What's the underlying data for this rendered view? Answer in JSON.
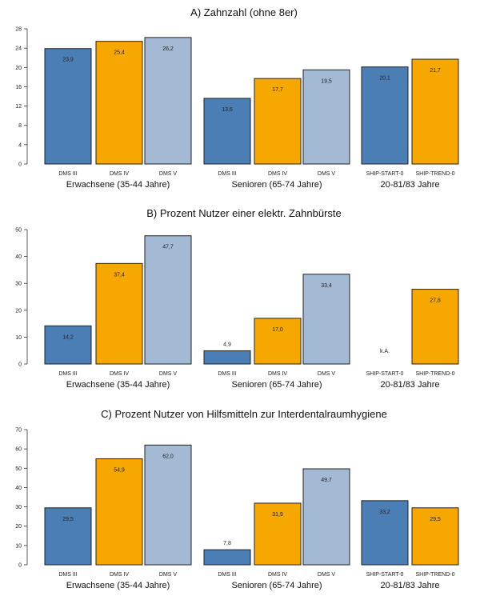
{
  "chart_data": [
    {
      "type": "bar",
      "title": "A) Zahnzahl (ohne 8er)",
      "ylim": [
        0,
        28
      ],
      "yticks": [
        0,
        4,
        8,
        12,
        16,
        20,
        24,
        28
      ],
      "groups": [
        {
          "label": "Erwachsene (35-44 Jahre)",
          "bars": [
            {
              "category": "DMS III",
              "value": 23.9,
              "label": "23,9",
              "series": "DMS III"
            },
            {
              "category": "DMS IV",
              "value": 25.4,
              "label": "25,4",
              "series": "DMS IV"
            },
            {
              "category": "DMS V",
              "value": 26.2,
              "label": "26,2",
              "series": "DMS V"
            }
          ]
        },
        {
          "label": "Senioren (65-74 Jahre)",
          "bars": [
            {
              "category": "DMS III",
              "value": 13.6,
              "label": "13,6",
              "series": "DMS III"
            },
            {
              "category": "DMS IV",
              "value": 17.7,
              "label": "17,7",
              "series": "DMS IV"
            },
            {
              "category": "DMS V",
              "value": 19.5,
              "label": "19,5",
              "series": "DMS V"
            }
          ]
        },
        {
          "label": "20-81/83 Jahre",
          "bars": [
            {
              "category": "SHIP-START-0",
              "value": 20.1,
              "label": "20,1",
              "series": "SHIP-START-0"
            },
            {
              "category": "SHIP-TREND-0",
              "value": 21.7,
              "label": "21,7",
              "series": "SHIP-TREND-0"
            }
          ]
        }
      ]
    },
    {
      "type": "bar",
      "title": "B) Prozent Nutzer einer elektr. Zahnbürste",
      "ylim": [
        0,
        50
      ],
      "yticks": [
        0,
        10,
        20,
        30,
        40,
        50
      ],
      "groups": [
        {
          "label": "Erwachsene (35-44 Jahre)",
          "bars": [
            {
              "category": "DMS III",
              "value": 14.2,
              "label": "14,2",
              "series": "DMS III"
            },
            {
              "category": "DMS IV",
              "value": 37.4,
              "label": "37,4",
              "series": "DMS IV"
            },
            {
              "category": "DMS V",
              "value": 47.7,
              "label": "47,7",
              "series": "DMS V"
            }
          ]
        },
        {
          "label": "Senioren (65-74 Jahre)",
          "bars": [
            {
              "category": "DMS III",
              "value": 4.9,
              "label": "4,9",
              "series": "DMS III"
            },
            {
              "category": "DMS IV",
              "value": 17.0,
              "label": "17,0",
              "series": "DMS IV"
            },
            {
              "category": "DMS V",
              "value": 33.4,
              "label": "33,4",
              "series": "DMS V"
            }
          ]
        },
        {
          "label": "20-81/83 Jahre",
          "bars": [
            {
              "category": "SHIP-START-0",
              "value": null,
              "label": "k.A.",
              "series": "SHIP-START-0"
            },
            {
              "category": "SHIP-TREND-0",
              "value": 27.8,
              "label": "27,8",
              "series": "SHIP-TREND-0"
            }
          ]
        }
      ]
    },
    {
      "type": "bar",
      "title": "C) Prozent Nutzer von Hilfsmitteln zur Interdentalraumhygiene",
      "ylim": [
        0,
        70
      ],
      "yticks": [
        0,
        10,
        20,
        30,
        40,
        50,
        60,
        70
      ],
      "groups": [
        {
          "label": "Erwachsene (35-44 Jahre)",
          "bars": [
            {
              "category": "DMS III",
              "value": 29.5,
              "label": "29,5",
              "series": "DMS III"
            },
            {
              "category": "DMS IV",
              "value": 54.9,
              "label": "54,9",
              "series": "DMS IV"
            },
            {
              "category": "DMS V",
              "value": 62.0,
              "label": "62,0",
              "series": "DMS V"
            }
          ]
        },
        {
          "label": "Senioren (65-74 Jahre)",
          "bars": [
            {
              "category": "DMS III",
              "value": 7.8,
              "label": "7,8",
              "series": "DMS III"
            },
            {
              "category": "DMS IV",
              "value": 31.9,
              "label": "31,9",
              "series": "DMS IV"
            },
            {
              "category": "DMS V",
              "value": 49.7,
              "label": "49,7",
              "series": "DMS V"
            }
          ]
        },
        {
          "label": "20-81/83 Jahre",
          "bars": [
            {
              "category": "SHIP-START-0",
              "value": 33.2,
              "label": "33,2",
              "series": "SHIP-START-0"
            },
            {
              "category": "SHIP-TREND-0",
              "value": 29.5,
              "label": "29,5",
              "series": "SHIP-TREND-0"
            }
          ]
        }
      ]
    }
  ],
  "colors": {
    "DMS III": "#4a7eb5",
    "DMS IV": "#f7a800",
    "DMS V": "#a3b9d4",
    "SHIP-START-0": "#4a7eb5",
    "SHIP-TREND-0": "#f7a800"
  }
}
